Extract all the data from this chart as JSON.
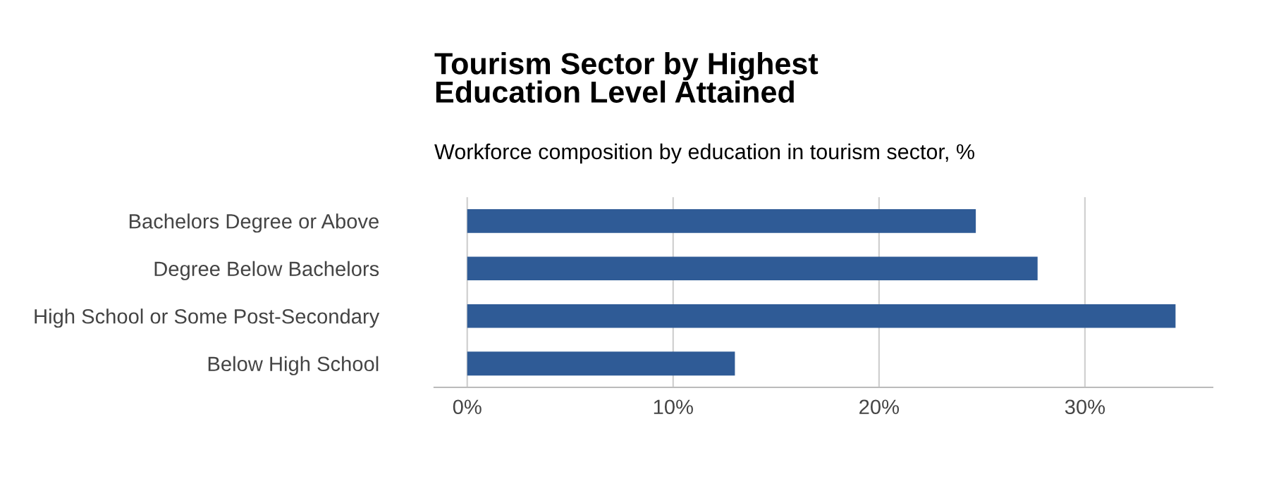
{
  "chart_data": {
    "type": "bar",
    "orientation": "horizontal",
    "title": "Tourism Sector by Highest\nEducation Level Attained",
    "subtitle": "Workforce composition by education in tourism sector, %",
    "categories": [
      "Bachelors Degree or Above",
      "Degree Below Bachelors",
      "High School or Some Post-Secondary",
      "Below High School"
    ],
    "values": [
      24.7,
      27.7,
      34.4,
      13.0
    ],
    "color": "#2f5b96",
    "xlim": [
      -1.6,
      36.2
    ],
    "xticks": [
      {
        "value": 0,
        "label": "0%"
      },
      {
        "value": 10,
        "label": "10%"
      },
      {
        "value": 20,
        "label": "20%"
      },
      {
        "value": 30,
        "label": "30%"
      }
    ],
    "grid": "x"
  }
}
